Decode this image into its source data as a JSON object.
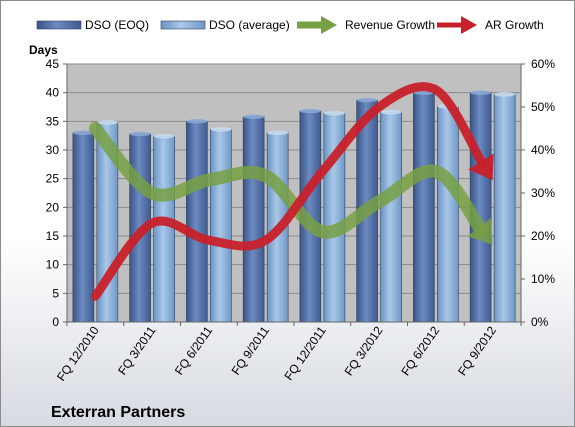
{
  "chart_data": {
    "type": "bar",
    "company": "Exterran Partners",
    "ylabel": "Days",
    "categories": [
      "FQ 12/2010",
      "FQ 3/2011",
      "FQ 6/2011",
      "FQ 9/2011",
      "FQ 12/2011",
      "FQ 3/2012",
      "FQ 6/2012",
      "FQ 9/2012"
    ],
    "series": [
      {
        "name": "DSO (EOQ)",
        "kind": "bar",
        "axis": "left",
        "color": "#4f6fa6",
        "values": [
          33,
          32.8,
          35,
          35.8,
          36.8,
          38.7,
          40,
          40
        ]
      },
      {
        "name": "DSO (average)",
        "kind": "bar",
        "axis": "left",
        "color": "#88b0da",
        "values": [
          34.8,
          32.4,
          33.6,
          33,
          36.4,
          36.6,
          37.6,
          39.7
        ]
      },
      {
        "name": "Revenue Growth",
        "kind": "arrow",
        "axis": "right",
        "color": "#77a043",
        "values": [
          0.45,
          0.3,
          0.33,
          0.34,
          0.21,
          0.28,
          0.35,
          0.18
        ]
      },
      {
        "name": "AR Growth",
        "kind": "arrow",
        "axis": "right",
        "color": "#c8202a",
        "values": [
          0.06,
          0.23,
          0.19,
          0.19,
          0.35,
          0.5,
          0.54,
          0.33
        ]
      }
    ],
    "ylim": [
      0,
      45
    ],
    "yticks": [
      0,
      5,
      10,
      15,
      20,
      25,
      30,
      35,
      40,
      45
    ],
    "y2lim": [
      0,
      0.6
    ],
    "y2ticks": [
      "0%",
      "10%",
      "20%",
      "30%",
      "40%",
      "50%",
      "60%"
    ],
    "legend_position": "top",
    "grid": true,
    "plot_area_color": "#c0c0c0"
  }
}
